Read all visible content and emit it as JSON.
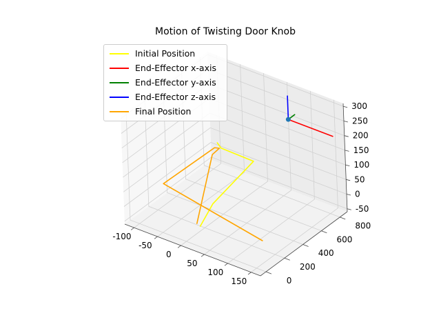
{
  "chart_data": {
    "type": "line3d",
    "title": "Motion of Twisting Door Knob",
    "xlabel": "",
    "ylabel": "",
    "zlabel": "",
    "xlim": [
      -120,
      170
    ],
    "ylim": [
      -60,
      880
    ],
    "zlim": [
      -60,
      310
    ],
    "x_ticks": [
      -100,
      -50,
      0,
      50,
      100,
      150
    ],
    "y_ticks": [
      0,
      200,
      400,
      600,
      800
    ],
    "z_ticks": [
      -50,
      0,
      50,
      100,
      150,
      200,
      250,
      300
    ],
    "grid": true,
    "legend_position": "top-left",
    "series": [
      {
        "name": "Initial Position",
        "color": "#ffff00",
        "x": [
          -30,
          -20,
          45,
          40,
          25
        ],
        "y": [
          510,
          500,
          520,
          100,
          30
        ],
        "z": [
          140,
          130,
          120,
          70,
          0
        ]
      },
      {
        "name": "Final Position",
        "color": "#ffa500",
        "x": [
          15,
          20,
          -28,
          -30,
          -45,
          140
        ],
        "y": [
          45,
          210,
          520,
          480,
          0,
          120
        ],
        "z": [
          0,
          200,
          120,
          130,
          110,
          0
        ]
      },
      {
        "name": "End-Effector x-axis",
        "color": "#ff0000",
        "x": [
          60,
          155
        ],
        "y": [
          830,
          830
        ],
        "z": [
          200,
          200
        ]
      },
      {
        "name": "End-Effector y-axis",
        "color": "#008000",
        "x": [
          60,
          60
        ],
        "y": [
          830,
          900
        ],
        "z": [
          200,
          200
        ]
      },
      {
        "name": "End-Effector z-axis",
        "color": "#0000ff",
        "x": [
          60,
          60
        ],
        "y": [
          830,
          830
        ],
        "z": [
          200,
          280
        ]
      }
    ],
    "end_effector_point": {
      "x": 60,
      "y": 830,
      "z": 200,
      "color": "#1f77b4"
    }
  }
}
